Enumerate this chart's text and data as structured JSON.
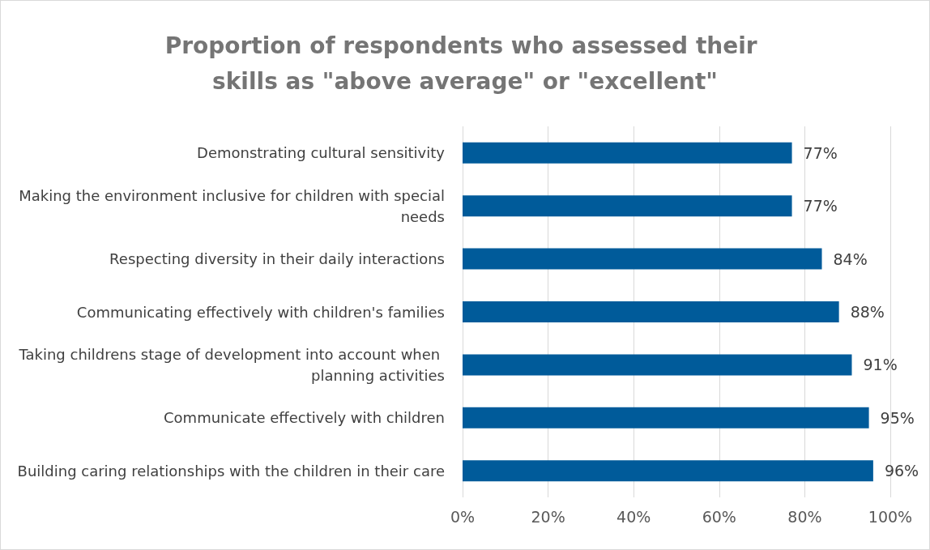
{
  "chart_data": {
    "type": "bar",
    "orientation": "horizontal",
    "title": "Proportion of respondents who assessed their skills as \"above average\" or \"excellent\"",
    "categories": [
      "Demonstrating cultural sensitivity",
      "Making the environment inclusive for children with special needs",
      "Respecting diversity in their daily interactions",
      "Communicating effectively with children's families",
      "Taking childrens stage of development into account when planning activities",
      "Communicate effectively with children",
      "Building caring relationships with the children in their care"
    ],
    "values": [
      77,
      77,
      84,
      88,
      91,
      95,
      96
    ],
    "value_labels": [
      "77%",
      "77%",
      "84%",
      "88%",
      "91%",
      "95%",
      "96%"
    ],
    "color": "#005b9a",
    "xlim": [
      0,
      100
    ],
    "xticks": [
      {
        "value": 0,
        "label": "0%"
      },
      {
        "value": 20,
        "label": "20%"
      },
      {
        "value": 40,
        "label": "40%"
      },
      {
        "value": 60,
        "label": "60%"
      },
      {
        "value": 80,
        "label": "80%"
      },
      {
        "value": 100,
        "label": "100%"
      }
    ],
    "grid": "x"
  }
}
